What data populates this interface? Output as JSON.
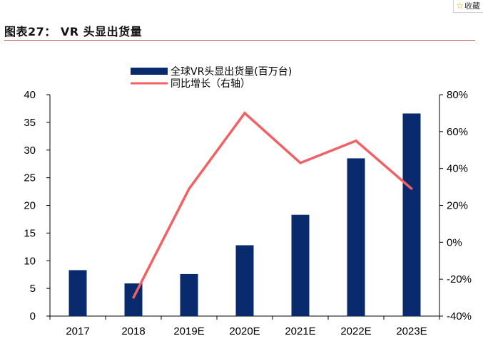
{
  "header": {
    "title": "图表27：  VR 头显出货量",
    "favorite_label": "收藏"
  },
  "chart_data": {
    "type": "bar",
    "categories": [
      "2017",
      "2018",
      "2019E",
      "2020E",
      "2021E",
      "2022E",
      "2023E"
    ],
    "series": [
      {
        "name": "全球VR头显出货量(百万台)",
        "type": "bar",
        "axis": "left",
        "color": "#0a2a6e",
        "values": [
          8.3,
          5.9,
          7.6,
          12.8,
          18.3,
          28.5,
          36.6
        ]
      },
      {
        "name": "同比增长（右轴）",
        "type": "line",
        "axis": "right",
        "color": "#f26164",
        "values": [
          null,
          -30,
          29,
          70,
          43,
          55,
          29
        ]
      }
    ],
    "y_left": {
      "min": 0,
      "max": 40,
      "step": 5,
      "ticks": [
        "0",
        "5",
        "10",
        "15",
        "20",
        "25",
        "30",
        "35",
        "40"
      ]
    },
    "y_right": {
      "min": -40,
      "max": 80,
      "step": 20,
      "ticks": [
        "-40%",
        "-20%",
        "0%",
        "20%",
        "40%",
        "60%",
        "80%"
      ]
    },
    "grid": false,
    "legend_position": "top-center"
  }
}
